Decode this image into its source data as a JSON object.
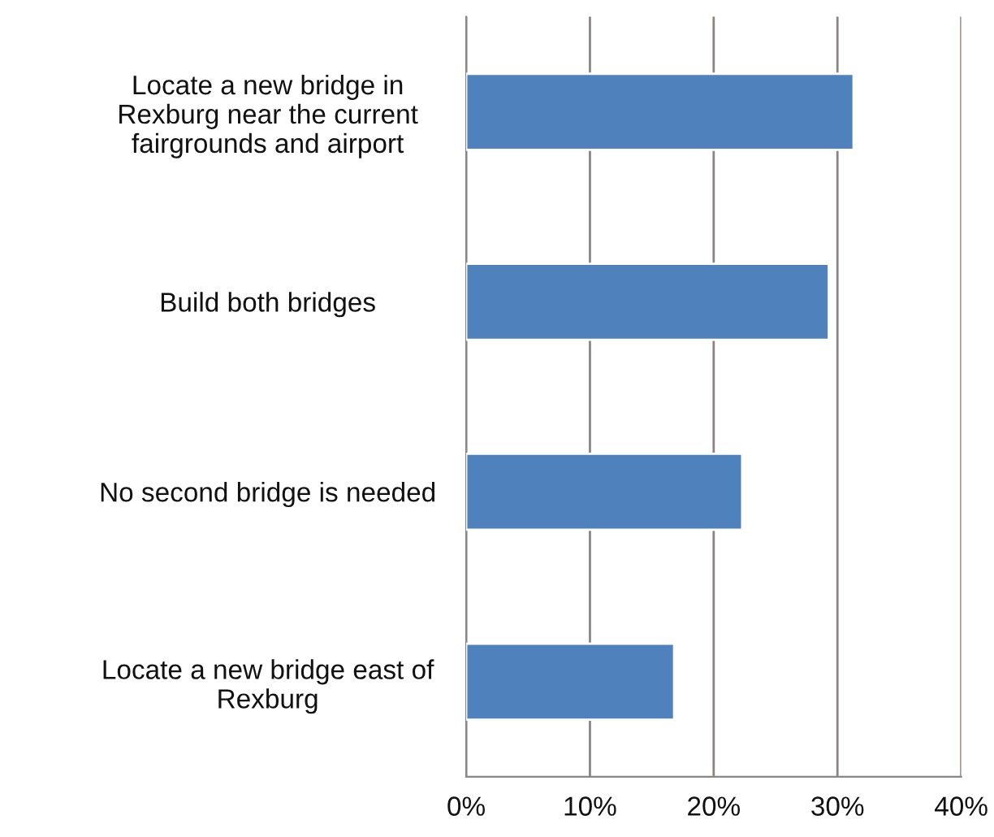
{
  "chart_data": {
    "type": "bar",
    "orientation": "horizontal",
    "categories": [
      "Locate a new bridge in\nRexburg near the current\nfairgrounds and airport",
      "Build both bridges",
      "No second bridge is needed",
      "Locate a new bridge east of\nRexburg"
    ],
    "values": [
      31.3,
      29.3,
      22.3,
      16.8
    ],
    "color": "#4f81bd",
    "xlim": [
      0,
      40
    ],
    "xticks": [
      {
        "value": 0,
        "label": "0%"
      },
      {
        "value": 10,
        "label": "10%"
      },
      {
        "value": 20,
        "label": "20%"
      },
      {
        "value": 30,
        "label": "30%"
      },
      {
        "value": 40,
        "label": "40%"
      }
    ],
    "grid": "x"
  }
}
